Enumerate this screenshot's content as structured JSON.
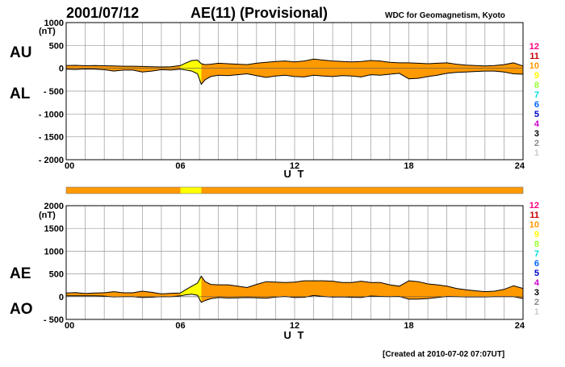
{
  "header": {
    "date": "2001/07/12",
    "title": "AE(11) (Provisional)",
    "source": "WDC for Geomagnetism, Kyoto"
  },
  "footer": {
    "created": "[Created at 2010-07-02 07:07UT]"
  },
  "legend": {
    "labels": [
      "12",
      "11",
      "10",
      "9",
      "8",
      "7",
      "6",
      "5",
      "4",
      "3",
      "2",
      "1"
    ],
    "colors": [
      "#ff0080",
      "#c80000",
      "#ff9900",
      "#ffff00",
      "#99ff33",
      "#00dddd",
      "#0066ff",
      "#0000c8",
      "#cc00cc",
      "#000000",
      "#888888",
      "#cccccc"
    ]
  },
  "colors": {
    "fill": "#ff9900",
    "fill_partial": "#ffff00",
    "grid": "#999999",
    "line": "#000000"
  },
  "chart_data": [
    {
      "type": "area",
      "name": "AU/AL",
      "label_upper": "AU",
      "label_lower": "AL",
      "y_unit_label": "(nT)",
      "xlabel": "U T",
      "xlim": [
        0,
        24
      ],
      "ylim": [
        -2000,
        1000
      ],
      "yticks": [
        1000,
        500,
        0,
        -500,
        -1000,
        -1500,
        -2000
      ],
      "yticklabels": [
        "1000",
        "500",
        "0",
        "- 500",
        "- 1000",
        "- 1500",
        "- 2000"
      ],
      "xticks": [
        0,
        6,
        12,
        18,
        24
      ],
      "xticklabels": [
        "00",
        "06",
        "12",
        "18",
        "24"
      ],
      "partial_interval": [
        6.0,
        7.1
      ],
      "x": [
        0,
        0.5,
        1,
        1.5,
        2,
        2.5,
        3,
        3.5,
        4,
        4.5,
        5,
        5.5,
        6,
        6.3,
        6.6,
        6.9,
        7.1,
        7.3,
        7.6,
        8,
        8.5,
        9,
        9.5,
        10,
        10.5,
        11,
        11.5,
        12,
        12.5,
        13,
        13.5,
        14,
        14.5,
        15,
        15.5,
        16,
        16.5,
        17,
        17.5,
        18,
        18.5,
        19,
        19.5,
        20,
        20.5,
        21,
        21.5,
        22,
        22.5,
        23,
        23.5,
        24
      ],
      "series": [
        {
          "name": "AU",
          "values": [
            60,
            65,
            55,
            60,
            55,
            50,
            45,
            45,
            40,
            35,
            30,
            35,
            60,
            120,
            170,
            180,
            100,
            80,
            90,
            110,
            100,
            90,
            80,
            110,
            130,
            150,
            160,
            140,
            160,
            200,
            180,
            160,
            150,
            140,
            150,
            170,
            160,
            130,
            120,
            120,
            110,
            100,
            110,
            120,
            90,
            70,
            60,
            50,
            60,
            80,
            120,
            50
          ]
        },
        {
          "name": "AL",
          "values": [
            -20,
            -25,
            -15,
            -20,
            -30,
            -60,
            -40,
            -40,
            -80,
            -60,
            -30,
            -40,
            -20,
            -40,
            -60,
            -120,
            -350,
            -250,
            -180,
            -150,
            -160,
            -140,
            -120,
            -160,
            -200,
            -170,
            -150,
            -180,
            -190,
            -150,
            -170,
            -180,
            -160,
            -170,
            -190,
            -140,
            -150,
            -130,
            -110,
            -230,
            -220,
            -180,
            -150,
            -110,
            -90,
            -80,
            -70,
            -60,
            -60,
            -80,
            -120,
            -130
          ]
        }
      ]
    },
    {
      "type": "area",
      "name": "AE/AO",
      "label_upper": "AE",
      "label_lower": "AO",
      "y_unit_label": "(nT)",
      "xlabel": "U T",
      "xlim": [
        0,
        24
      ],
      "ylim": [
        -500,
        2000
      ],
      "yticks": [
        2000,
        1500,
        1000,
        500,
        0,
        -500
      ],
      "yticklabels": [
        "2000",
        "1500",
        "1000",
        "500",
        "0",
        "- 500"
      ],
      "xticks": [
        0,
        6,
        12,
        18,
        24
      ],
      "xticklabels": [
        "00",
        "06",
        "12",
        "18",
        "24"
      ],
      "partial_interval": [
        6.0,
        7.1
      ],
      "x": [
        0,
        0.5,
        1,
        1.5,
        2,
        2.5,
        3,
        3.5,
        4,
        4.5,
        5,
        5.5,
        6,
        6.3,
        6.6,
        6.9,
        7.1,
        7.3,
        7.6,
        8,
        8.5,
        9,
        9.5,
        10,
        10.5,
        11,
        11.5,
        12,
        12.5,
        13,
        13.5,
        14,
        14.5,
        15,
        15.5,
        16,
        16.5,
        17,
        17.5,
        18,
        18.5,
        19,
        19.5,
        20,
        20.5,
        21,
        21.5,
        22,
        22.5,
        23,
        23.5,
        24
      ],
      "series": [
        {
          "name": "AE",
          "values": [
            80,
            90,
            70,
            80,
            85,
            110,
            85,
            85,
            120,
            95,
            60,
            75,
            80,
            160,
            230,
            300,
            450,
            330,
            270,
            260,
            260,
            230,
            200,
            270,
            330,
            320,
            310,
            320,
            350,
            350,
            350,
            340,
            310,
            310,
            340,
            310,
            310,
            260,
            230,
            350,
            330,
            280,
            260,
            230,
            180,
            150,
            130,
            110,
            120,
            160,
            240,
            180
          ]
        },
        {
          "name": "AO",
          "values": [
            20,
            20,
            20,
            20,
            12,
            -5,
            2,
            2,
            -20,
            -12,
            0,
            -2,
            20,
            40,
            55,
            30,
            -125,
            -85,
            -45,
            -20,
            -30,
            -25,
            -20,
            -25,
            -35,
            -10,
            5,
            -20,
            -15,
            25,
            5,
            -10,
            -5,
            -15,
            -20,
            15,
            5,
            0,
            5,
            -55,
            -55,
            -40,
            -20,
            5,
            0,
            -5,
            -5,
            -5,
            0,
            0,
            0,
            -40
          ]
        }
      ]
    }
  ]
}
